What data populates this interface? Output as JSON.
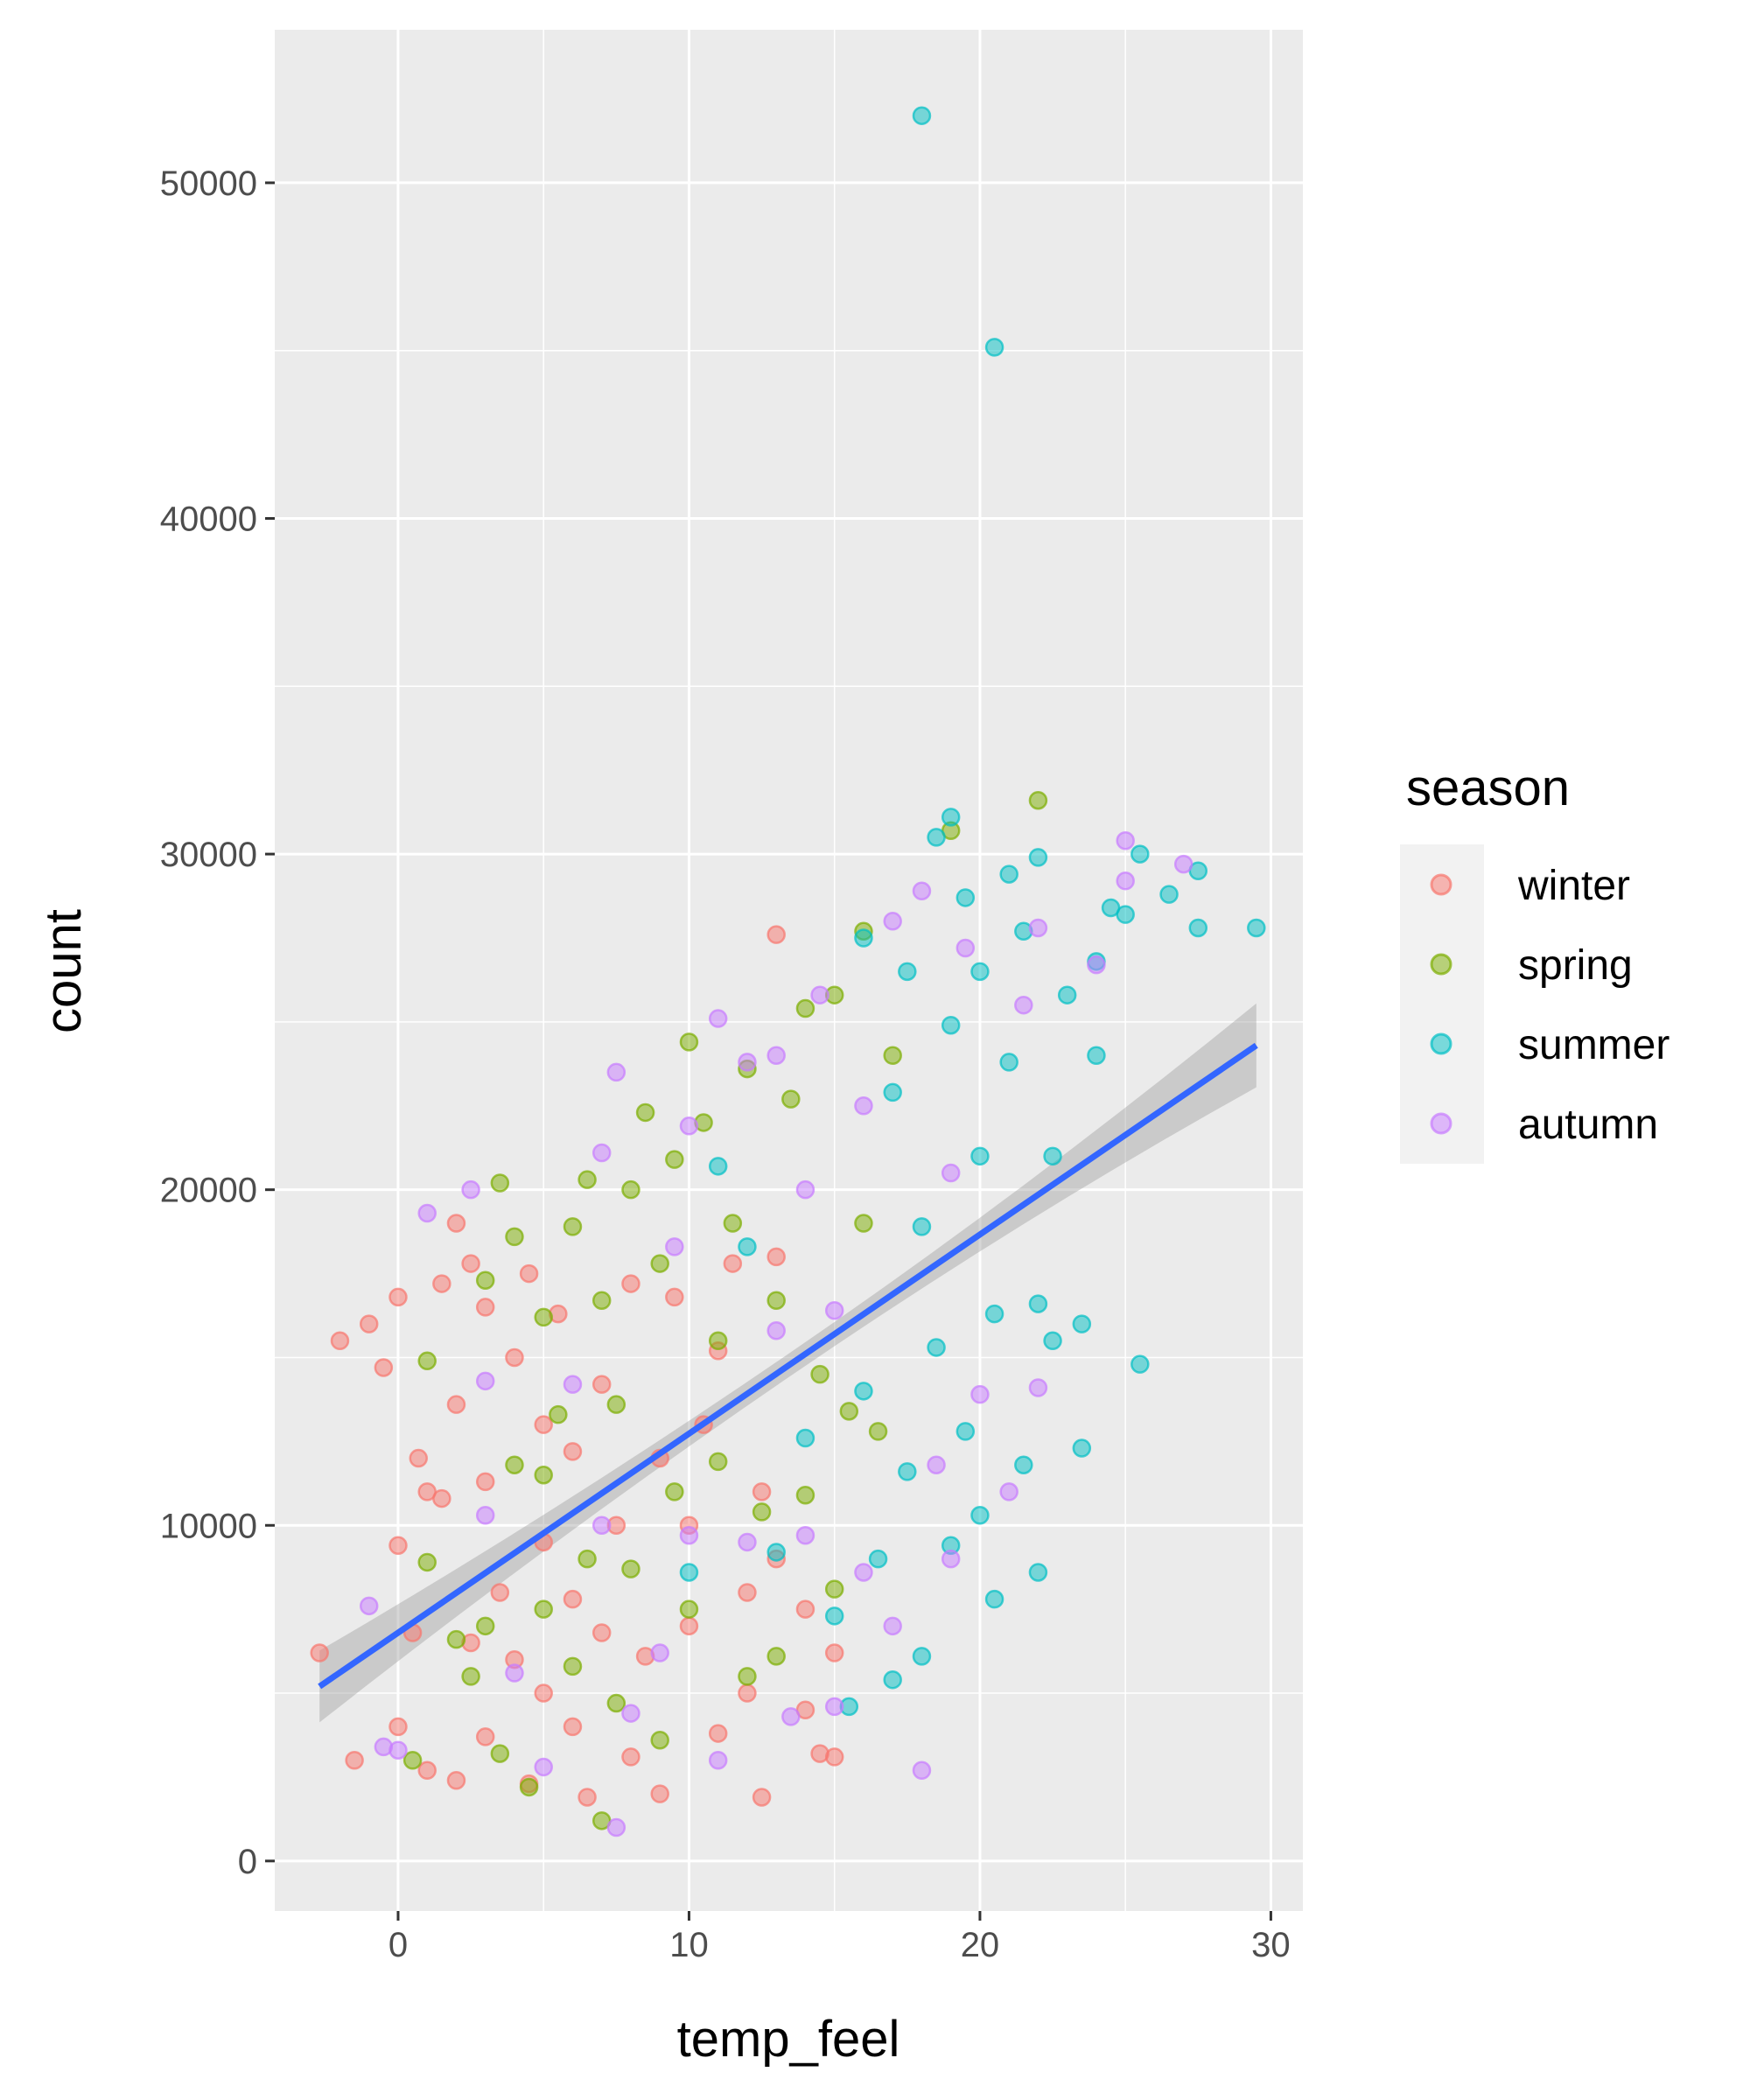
{
  "chart_data": {
    "type": "scatter",
    "xlabel": "temp_feel",
    "ylabel": "count",
    "xlim": [
      -4.24,
      31.1
    ],
    "ylim": [
      -1490,
      54560
    ],
    "x_ticks": [
      0,
      10,
      20,
      30
    ],
    "y_ticks": [
      0,
      10000,
      20000,
      30000,
      40000,
      50000
    ],
    "grid": true,
    "legend": {
      "title": "season",
      "placement": "right",
      "entries": [
        "winter",
        "spring",
        "summer",
        "autumn"
      ]
    },
    "colors": {
      "winter": "#F8766D",
      "spring": "#7CAE00",
      "summer": "#00BFC4",
      "autumn": "#C77CFF",
      "trend": "#3366FF",
      "band": "#999999",
      "panel": "#EBEBEB"
    },
    "series": [
      {
        "name": "winter",
        "points": [
          [
            -2.7,
            6200
          ],
          [
            -2,
            15500
          ],
          [
            -1.5,
            3000
          ],
          [
            -1,
            16000
          ],
          [
            -0.5,
            14700
          ],
          [
            0,
            16800
          ],
          [
            0,
            9400
          ],
          [
            0,
            4000
          ],
          [
            0.5,
            6800
          ],
          [
            0.7,
            12000
          ],
          [
            1,
            11000
          ],
          [
            1,
            2700
          ],
          [
            1.5,
            17200
          ],
          [
            1.5,
            10800
          ],
          [
            2,
            19000
          ],
          [
            2,
            13600
          ],
          [
            2,
            2400
          ],
          [
            2.5,
            17800
          ],
          [
            2.5,
            6500
          ],
          [
            3,
            16500
          ],
          [
            3,
            11300
          ],
          [
            3,
            3700
          ],
          [
            3.5,
            8000
          ],
          [
            4,
            15000
          ],
          [
            4,
            6000
          ],
          [
            4.5,
            17500
          ],
          [
            4.5,
            2300
          ],
          [
            5,
            13000
          ],
          [
            5,
            9500
          ],
          [
            5,
            5000
          ],
          [
            5.5,
            16300
          ],
          [
            6,
            12200
          ],
          [
            6,
            7800
          ],
          [
            6,
            4000
          ],
          [
            6.5,
            1900
          ],
          [
            7,
            14200
          ],
          [
            7,
            6800
          ],
          [
            7.5,
            10000
          ],
          [
            8,
            17200
          ],
          [
            8,
            3100
          ],
          [
            8.5,
            6100
          ],
          [
            9,
            2000
          ],
          [
            9,
            12000
          ],
          [
            9.5,
            16800
          ],
          [
            10,
            10000
          ],
          [
            10,
            7000
          ],
          [
            10.5,
            13000
          ],
          [
            11,
            15200
          ],
          [
            11,
            3800
          ],
          [
            11.5,
            17800
          ],
          [
            12,
            8000
          ],
          [
            12,
            5000
          ],
          [
            12.5,
            1900
          ],
          [
            12.5,
            11000
          ],
          [
            13,
            27600
          ],
          [
            13,
            18000
          ],
          [
            13,
            9000
          ],
          [
            14,
            7500
          ],
          [
            14,
            4500
          ],
          [
            14.5,
            3200
          ],
          [
            15,
            6200
          ],
          [
            15,
            3100
          ]
        ]
      },
      {
        "name": "spring",
        "points": [
          [
            0.5,
            3000
          ],
          [
            1,
            8900
          ],
          [
            1,
            14900
          ],
          [
            2,
            6600
          ],
          [
            2.5,
            5500
          ],
          [
            3,
            17300
          ],
          [
            3,
            7000
          ],
          [
            3.5,
            20200
          ],
          [
            3.5,
            3200
          ],
          [
            4,
            11800
          ],
          [
            4,
            18600
          ],
          [
            4.5,
            2200
          ],
          [
            5,
            7500
          ],
          [
            5,
            16200
          ],
          [
            5,
            11500
          ],
          [
            5.5,
            13300
          ],
          [
            6,
            18900
          ],
          [
            6,
            5800
          ],
          [
            6.5,
            9000
          ],
          [
            6.5,
            20300
          ],
          [
            7,
            1200
          ],
          [
            7,
            16700
          ],
          [
            7.5,
            13600
          ],
          [
            7.5,
            4700
          ],
          [
            8,
            20000
          ],
          [
            8,
            8700
          ],
          [
            8.5,
            22300
          ],
          [
            9,
            3600
          ],
          [
            9,
            17800
          ],
          [
            9.5,
            11000
          ],
          [
            9.5,
            20900
          ],
          [
            10,
            24400
          ],
          [
            10,
            7500
          ],
          [
            10.5,
            22000
          ],
          [
            11,
            15500
          ],
          [
            11,
            11900
          ],
          [
            11.5,
            19000
          ],
          [
            12,
            23600
          ],
          [
            12,
            5500
          ],
          [
            12.5,
            10400
          ],
          [
            13,
            16700
          ],
          [
            13,
            6100
          ],
          [
            13.5,
            22700
          ],
          [
            14,
            10900
          ],
          [
            14,
            25400
          ],
          [
            14.5,
            14500
          ],
          [
            15,
            25800
          ],
          [
            15,
            8100
          ],
          [
            15.5,
            13400
          ],
          [
            16,
            27700
          ],
          [
            16,
            19000
          ],
          [
            16.5,
            12800
          ],
          [
            17,
            24000
          ],
          [
            19,
            30700
          ],
          [
            22,
            31600
          ]
        ]
      },
      {
        "name": "summer",
        "points": [
          [
            10,
            8600
          ],
          [
            11,
            20700
          ],
          [
            12,
            18300
          ],
          [
            13,
            9200
          ],
          [
            14,
            12600
          ],
          [
            15,
            7300
          ],
          [
            15.5,
            4600
          ],
          [
            16,
            14000
          ],
          [
            16,
            27500
          ],
          [
            16.5,
            9000
          ],
          [
            17,
            5400
          ],
          [
            17,
            22900
          ],
          [
            17.5,
            11600
          ],
          [
            17.5,
            26500
          ],
          [
            18,
            6100
          ],
          [
            18,
            18900
          ],
          [
            18,
            52000
          ],
          [
            18.5,
            15300
          ],
          [
            18.5,
            30500
          ],
          [
            19,
            9400
          ],
          [
            19,
            24900
          ],
          [
            19,
            31100
          ],
          [
            19.5,
            12800
          ],
          [
            19.5,
            28700
          ],
          [
            20,
            10300
          ],
          [
            20,
            21000
          ],
          [
            20,
            26500
          ],
          [
            20.5,
            7800
          ],
          [
            20.5,
            16300
          ],
          [
            20.5,
            45100
          ],
          [
            21,
            23800
          ],
          [
            21,
            29400
          ],
          [
            21.5,
            11800
          ],
          [
            21.5,
            27700
          ],
          [
            22,
            8600
          ],
          [
            22,
            16600
          ],
          [
            22,
            29900
          ],
          [
            22.5,
            15500
          ],
          [
            22.5,
            21000
          ],
          [
            23,
            25800
          ],
          [
            23.5,
            12300
          ],
          [
            23.5,
            16000
          ],
          [
            24,
            24000
          ],
          [
            24,
            26800
          ],
          [
            24.5,
            28400
          ],
          [
            25,
            28200
          ],
          [
            25.5,
            14800
          ],
          [
            25.5,
            30000
          ],
          [
            26.5,
            28800
          ],
          [
            27.5,
            27800
          ],
          [
            27.5,
            29500
          ],
          [
            29.5,
            27800
          ]
        ]
      },
      {
        "name": "autumn",
        "points": [
          [
            -1,
            7600
          ],
          [
            -0.5,
            3400
          ],
          [
            0,
            3300
          ],
          [
            1,
            19300
          ],
          [
            2.5,
            20000
          ],
          [
            3,
            10300
          ],
          [
            3,
            14300
          ],
          [
            4,
            5600
          ],
          [
            5,
            2800
          ],
          [
            6,
            14200
          ],
          [
            7,
            21100
          ],
          [
            7,
            10000
          ],
          [
            7.5,
            23500
          ],
          [
            7.5,
            1000
          ],
          [
            8,
            4400
          ],
          [
            9,
            6200
          ],
          [
            9.5,
            18300
          ],
          [
            10,
            21900
          ],
          [
            10,
            9700
          ],
          [
            11,
            25100
          ],
          [
            11,
            3000
          ],
          [
            12,
            23800
          ],
          [
            12,
            9500
          ],
          [
            13,
            24000
          ],
          [
            13,
            15800
          ],
          [
            13.5,
            4300
          ],
          [
            14,
            20000
          ],
          [
            14,
            9700
          ],
          [
            14.5,
            25800
          ],
          [
            15,
            4600
          ],
          [
            15,
            16400
          ],
          [
            16,
            22500
          ],
          [
            16,
            8600
          ],
          [
            17,
            28000
          ],
          [
            17,
            7000
          ],
          [
            18,
            28900
          ],
          [
            18,
            2700
          ],
          [
            18.5,
            11800
          ],
          [
            19,
            20500
          ],
          [
            19,
            9000
          ],
          [
            19.5,
            27200
          ],
          [
            20,
            13900
          ],
          [
            21,
            11000
          ],
          [
            21.5,
            25500
          ],
          [
            22,
            14100
          ],
          [
            22,
            27800
          ],
          [
            24,
            26700
          ],
          [
            25,
            29200
          ],
          [
            25,
            30400
          ],
          [
            27,
            29700
          ]
        ]
      }
    ],
    "trend": {
      "method": "linear",
      "x": [
        -2.7,
        29.5
      ],
      "y": [
        5200,
        24300
      ],
      "ci_halfwidth": [
        800,
        1000
      ]
    }
  }
}
